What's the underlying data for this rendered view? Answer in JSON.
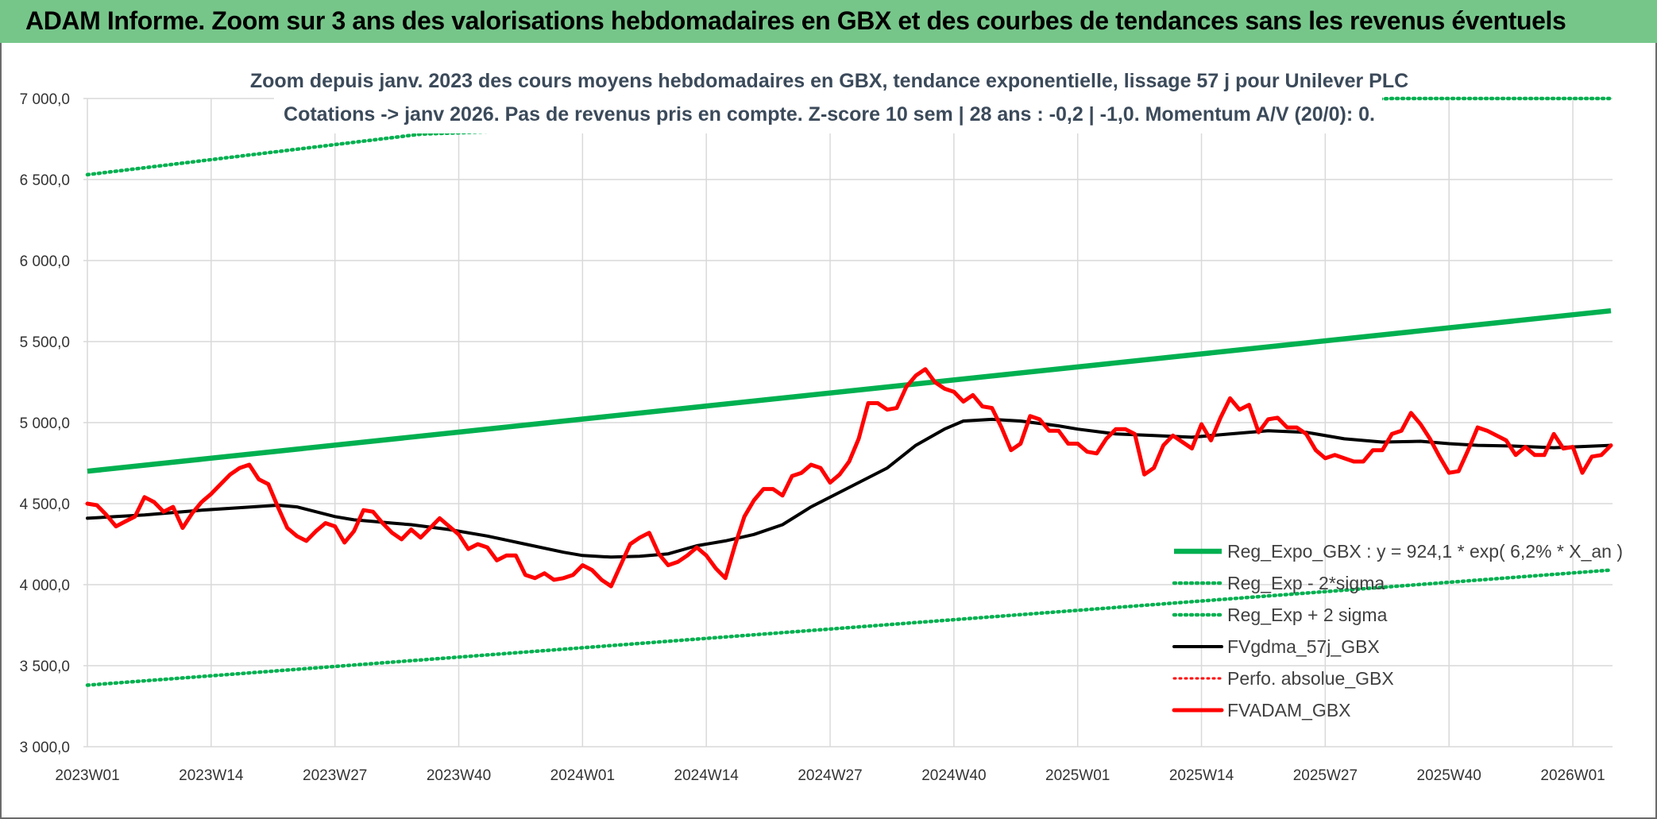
{
  "banner": {
    "title": "ADAM Informe. Zoom sur 3 ans des valorisations hebdomadaires en GBX et des courbes de tendances sans les revenus éventuels"
  },
  "chart_data": {
    "type": "line",
    "title": "Zoom depuis janv. 2023 des cours moyens hebdomadaires en GBX, tendance exponentielle, lissage 57 j pour Unilever PLC",
    "subtitle": "Cotations -> janv 2026. Pas de revenus pris en compte. Z-score 10 sem | 28 ans : -0,2 | -1,0. Momentum A/V (20/0): 0.",
    "xlabel": "",
    "ylabel": "",
    "ylim": [
      3000,
      7000
    ],
    "yticks": [
      "3 000,0",
      "3 500,0",
      "4 000,0",
      "4 500,0",
      "5 000,0",
      "5 500,0",
      "6 000,0",
      "6 500,0",
      "7 000,0"
    ],
    "ytick_values": [
      3000,
      3500,
      4000,
      4500,
      5000,
      5500,
      6000,
      6500,
      7000
    ],
    "x_tick_labels": [
      "2023W01",
      "2023W14",
      "2023W27",
      "2023W40",
      "2024W01",
      "2024W14",
      "2024W27",
      "2024W40",
      "2025W01",
      "2025W14",
      "2025W27",
      "2025W40",
      "2026W01"
    ],
    "x_tick_weeks": [
      0,
      13,
      26,
      39,
      52,
      65,
      78,
      91,
      104,
      117,
      130,
      143,
      156
    ],
    "x_range_weeks": [
      0,
      160
    ],
    "grid": true,
    "legend_position": "bottom-right",
    "series": [
      {
        "name": "Reg_Expo_GBX : y = 924,1 * exp( 6,2% *  X_an )",
        "color": "#00b050",
        "style": "solid",
        "points": [
          [
            0,
            4700
          ],
          [
            160,
            5690
          ]
        ]
      },
      {
        "name": "Reg_Exp - 2*sigma",
        "color": "#00b050",
        "style": "dotted",
        "points": [
          [
            0,
            3380
          ],
          [
            160,
            4090
          ]
        ]
      },
      {
        "name": "Reg_Exp + 2 sigma",
        "color": "#00b050",
        "style": "dotted",
        "points": [
          [
            0,
            6530
          ],
          [
            35,
            6780
          ],
          [
            137,
            7000
          ],
          [
            160,
            7000
          ]
        ]
      },
      {
        "name": "FVgdma_57j_GBX",
        "color": "#000000",
        "style": "solid",
        "points": [
          [
            0,
            4410
          ],
          [
            3,
            4420
          ],
          [
            6,
            4430
          ],
          [
            9,
            4445
          ],
          [
            12,
            4460
          ],
          [
            16,
            4475
          ],
          [
            20,
            4490
          ],
          [
            22,
            4480
          ],
          [
            24,
            4450
          ],
          [
            26,
            4420
          ],
          [
            28,
            4400
          ],
          [
            30,
            4390
          ],
          [
            32,
            4380
          ],
          [
            34,
            4370
          ],
          [
            38,
            4340
          ],
          [
            42,
            4300
          ],
          [
            46,
            4250
          ],
          [
            50,
            4200
          ],
          [
            52,
            4180
          ],
          [
            55,
            4170
          ],
          [
            58,
            4175
          ],
          [
            61,
            4190
          ],
          [
            64,
            4240
          ],
          [
            67,
            4270
          ],
          [
            70,
            4310
          ],
          [
            73,
            4370
          ],
          [
            76,
            4480
          ],
          [
            80,
            4600
          ],
          [
            84,
            4720
          ],
          [
            87,
            4860
          ],
          [
            90,
            4960
          ],
          [
            92,
            5010
          ],
          [
            95,
            5020
          ],
          [
            98,
            5010
          ],
          [
            102,
            4980
          ],
          [
            104,
            4960
          ],
          [
            108,
            4930
          ],
          [
            112,
            4920
          ],
          [
            116,
            4910
          ],
          [
            120,
            4930
          ],
          [
            124,
            4950
          ],
          [
            128,
            4940
          ],
          [
            132,
            4900
          ],
          [
            136,
            4880
          ],
          [
            140,
            4885
          ],
          [
            143,
            4870
          ],
          [
            146,
            4860
          ],
          [
            150,
            4855
          ],
          [
            154,
            4845
          ],
          [
            156,
            4850
          ],
          [
            160,
            4860
          ]
        ]
      },
      {
        "name": "Perfo. absolue_GBX",
        "color": "#ff0000",
        "style": "dotted",
        "points": []
      },
      {
        "name": "FVADAM_GBX",
        "color": "#ff0000",
        "style": "solid",
        "points": [
          [
            0,
            4500
          ],
          [
            1,
            4490
          ],
          [
            2,
            4430
          ],
          [
            3,
            4360
          ],
          [
            4,
            4390
          ],
          [
            5,
            4420
          ],
          [
            6,
            4540
          ],
          [
            7,
            4510
          ],
          [
            8,
            4450
          ],
          [
            9,
            4480
          ],
          [
            10,
            4350
          ],
          [
            11,
            4440
          ],
          [
            12,
            4510
          ],
          [
            13,
            4560
          ],
          [
            14,
            4620
          ],
          [
            15,
            4680
          ],
          [
            16,
            4720
          ],
          [
            17,
            4740
          ],
          [
            18,
            4650
          ],
          [
            19,
            4620
          ],
          [
            20,
            4480
          ],
          [
            21,
            4350
          ],
          [
            22,
            4300
          ],
          [
            23,
            4270
          ],
          [
            24,
            4330
          ],
          [
            25,
            4380
          ],
          [
            26,
            4360
          ],
          [
            27,
            4260
          ],
          [
            28,
            4330
          ],
          [
            29,
            4460
          ],
          [
            30,
            4450
          ],
          [
            31,
            4380
          ],
          [
            32,
            4320
          ],
          [
            33,
            4280
          ],
          [
            34,
            4340
          ],
          [
            35,
            4290
          ],
          [
            36,
            4350
          ],
          [
            37,
            4410
          ],
          [
            38,
            4360
          ],
          [
            39,
            4310
          ],
          [
            40,
            4220
          ],
          [
            41,
            4250
          ],
          [
            42,
            4230
          ],
          [
            43,
            4150
          ],
          [
            44,
            4180
          ],
          [
            45,
            4180
          ],
          [
            46,
            4060
          ],
          [
            47,
            4040
          ],
          [
            48,
            4070
          ],
          [
            49,
            4030
          ],
          [
            50,
            4040
          ],
          [
            51,
            4060
          ],
          [
            52,
            4120
          ],
          [
            53,
            4090
          ],
          [
            54,
            4030
          ],
          [
            55,
            3990
          ],
          [
            56,
            4120
          ],
          [
            57,
            4250
          ],
          [
            58,
            4290
          ],
          [
            59,
            4320
          ],
          [
            60,
            4190
          ],
          [
            61,
            4120
          ],
          [
            62,
            4140
          ],
          [
            63,
            4180
          ],
          [
            64,
            4230
          ],
          [
            65,
            4180
          ],
          [
            66,
            4100
          ],
          [
            67,
            4040
          ],
          [
            68,
            4240
          ],
          [
            69,
            4420
          ],
          [
            70,
            4520
          ],
          [
            71,
            4590
          ],
          [
            72,
            4590
          ],
          [
            73,
            4550
          ],
          [
            74,
            4670
          ],
          [
            75,
            4690
          ],
          [
            76,
            4740
          ],
          [
            77,
            4720
          ],
          [
            78,
            4630
          ],
          [
            79,
            4680
          ],
          [
            80,
            4760
          ],
          [
            81,
            4900
          ],
          [
            82,
            5120
          ],
          [
            83,
            5120
          ],
          [
            84,
            5080
          ],
          [
            85,
            5090
          ],
          [
            86,
            5220
          ],
          [
            87,
            5290
          ],
          [
            88,
            5330
          ],
          [
            89,
            5250
          ],
          [
            90,
            5210
          ],
          [
            91,
            5190
          ],
          [
            92,
            5130
          ],
          [
            93,
            5170
          ],
          [
            94,
            5100
          ],
          [
            95,
            5090
          ],
          [
            96,
            4970
          ],
          [
            97,
            4830
          ],
          [
            98,
            4870
          ],
          [
            99,
            5040
          ],
          [
            100,
            5020
          ],
          [
            101,
            4950
          ],
          [
            102,
            4950
          ],
          [
            103,
            4870
          ],
          [
            104,
            4870
          ],
          [
            105,
            4820
          ],
          [
            106,
            4810
          ],
          [
            107,
            4900
          ],
          [
            108,
            4960
          ],
          [
            109,
            4960
          ],
          [
            110,
            4930
          ],
          [
            111,
            4680
          ],
          [
            112,
            4720
          ],
          [
            113,
            4860
          ],
          [
            114,
            4920
          ],
          [
            115,
            4880
          ],
          [
            116,
            4840
          ],
          [
            117,
            4990
          ],
          [
            118,
            4890
          ],
          [
            119,
            5030
          ],
          [
            120,
            5150
          ],
          [
            121,
            5080
          ],
          [
            122,
            5110
          ],
          [
            123,
            4940
          ],
          [
            124,
            5020
          ],
          [
            125,
            5030
          ],
          [
            126,
            4970
          ],
          [
            127,
            4970
          ],
          [
            128,
            4930
          ],
          [
            129,
            4830
          ],
          [
            130,
            4780
          ],
          [
            131,
            4800
          ],
          [
            132,
            4780
          ],
          [
            133,
            4760
          ],
          [
            134,
            4760
          ],
          [
            135,
            4830
          ],
          [
            136,
            4830
          ],
          [
            137,
            4930
          ],
          [
            138,
            4950
          ],
          [
            139,
            5060
          ],
          [
            140,
            4990
          ],
          [
            141,
            4900
          ],
          [
            142,
            4790
          ],
          [
            143,
            4690
          ],
          [
            144,
            4700
          ],
          [
            145,
            4830
          ],
          [
            146,
            4970
          ],
          [
            147,
            4950
          ],
          [
            148,
            4920
          ],
          [
            149,
            4890
          ],
          [
            150,
            4800
          ],
          [
            151,
            4850
          ],
          [
            152,
            4800
          ],
          [
            153,
            4800
          ],
          [
            154,
            4930
          ],
          [
            155,
            4840
          ],
          [
            156,
            4850
          ],
          [
            157,
            4690
          ],
          [
            158,
            4790
          ],
          [
            159,
            4800
          ],
          [
            160,
            4860
          ]
        ]
      }
    ]
  }
}
